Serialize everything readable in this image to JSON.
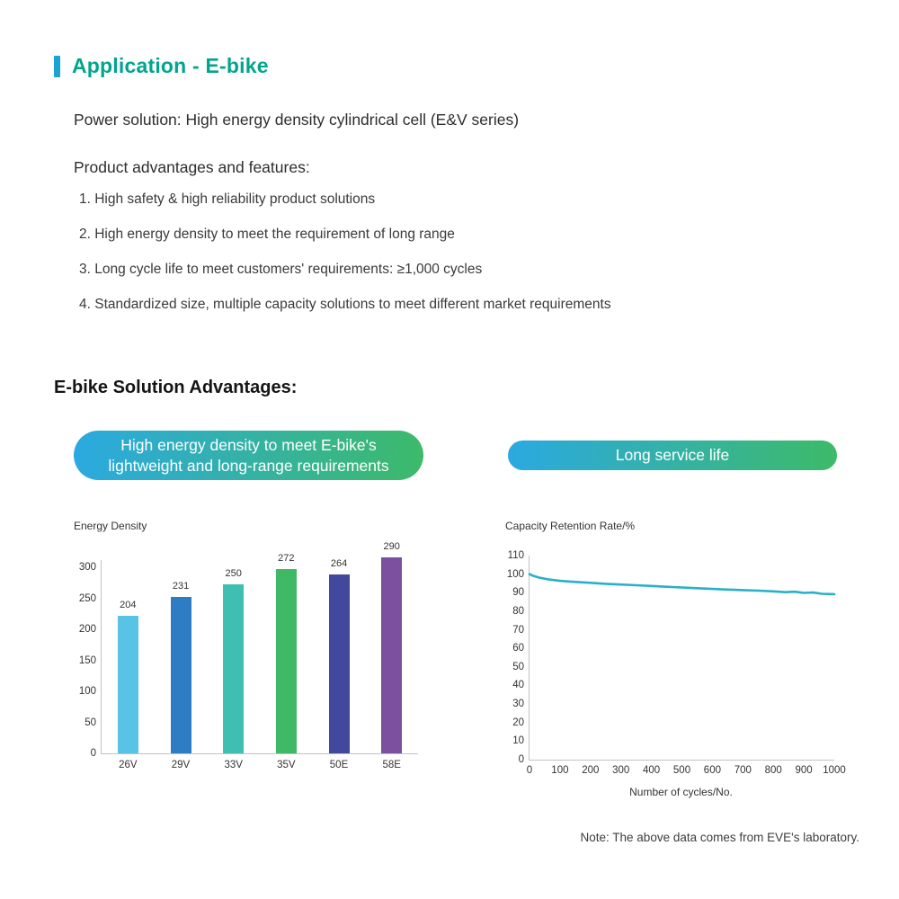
{
  "page": {
    "title": "Application - E-bike",
    "subtitle": "Power solution: High energy density cylindrical cell (E&V series)",
    "features_heading": "Product advantages and features:",
    "features": [
      "1. High safety & high reliability product solutions",
      "2. High energy density to meet the requirement of long range",
      "3. Long cycle life to meet customers' requirements: ≥1,000 cycles",
      "4. Standardized size, multiple capacity solutions to meet different market requirements"
    ],
    "advantages_heading": "E-bike Solution Advantages:",
    "badge_left": "High energy density to meet E-bike's\nlightweight and long-range requirements",
    "badge_right": "Long service life",
    "note": "Note: The above data comes from EVE's laboratory."
  },
  "colors": {
    "accent_bar": "#1CA3D6",
    "title_color": "#00A58E",
    "badge_start": "#2BA9E1",
    "badge_end": "#3DBA69",
    "line_color": "#29B0C9"
  },
  "chart_data": [
    {
      "type": "bar",
      "title": "Energy Density",
      "categories": [
        "26V",
        "29V",
        "33V",
        "35V",
        "50E",
        "58E"
      ],
      "values": [
        204,
        231,
        250,
        272,
        264,
        290
      ],
      "bar_colors": [
        "#58C3E4",
        "#2E7CC3",
        "#3EBFB1",
        "#3FB966",
        "#42489B",
        "#7C4F9F"
      ],
      "xlabel": "",
      "ylabel": "Energy Density",
      "ylim": [
        0,
        300
      ],
      "yticks": [
        0,
        50,
        100,
        150,
        200,
        250,
        300
      ],
      "grid": false,
      "legend": false
    },
    {
      "type": "line",
      "title": "Capacity Retention Rate/%",
      "xlabel": "Number of cycles/No.",
      "ylabel": "Capacity Retention Rate/%",
      "xlim": [
        0,
        1000
      ],
      "ylim": [
        0,
        110
      ],
      "xticks": [
        0,
        100,
        200,
        300,
        400,
        500,
        600,
        700,
        800,
        900,
        1000
      ],
      "yticks": [
        0,
        10,
        20,
        30,
        40,
        50,
        60,
        70,
        80,
        90,
        100,
        110
      ],
      "grid": false,
      "legend": false,
      "line_color": "#29B0C9",
      "points": [
        [
          0,
          100
        ],
        [
          10,
          99.2
        ],
        [
          30,
          98.2
        ],
        [
          60,
          97.2
        ],
        [
          100,
          96.4
        ],
        [
          150,
          95.8
        ],
        [
          200,
          95.3
        ],
        [
          250,
          94.8
        ],
        [
          300,
          94.4
        ],
        [
          350,
          94.0
        ],
        [
          400,
          93.6
        ],
        [
          450,
          93.2
        ],
        [
          500,
          92.8
        ],
        [
          550,
          92.4
        ],
        [
          600,
          92.0
        ],
        [
          650,
          91.7
        ],
        [
          700,
          91.4
        ],
        [
          750,
          91.1
        ],
        [
          800,
          90.7
        ],
        [
          840,
          90.3
        ],
        [
          870,
          90.5
        ],
        [
          900,
          89.9
        ],
        [
          930,
          90.1
        ],
        [
          960,
          89.4
        ],
        [
          1000,
          89.2
        ]
      ]
    }
  ]
}
